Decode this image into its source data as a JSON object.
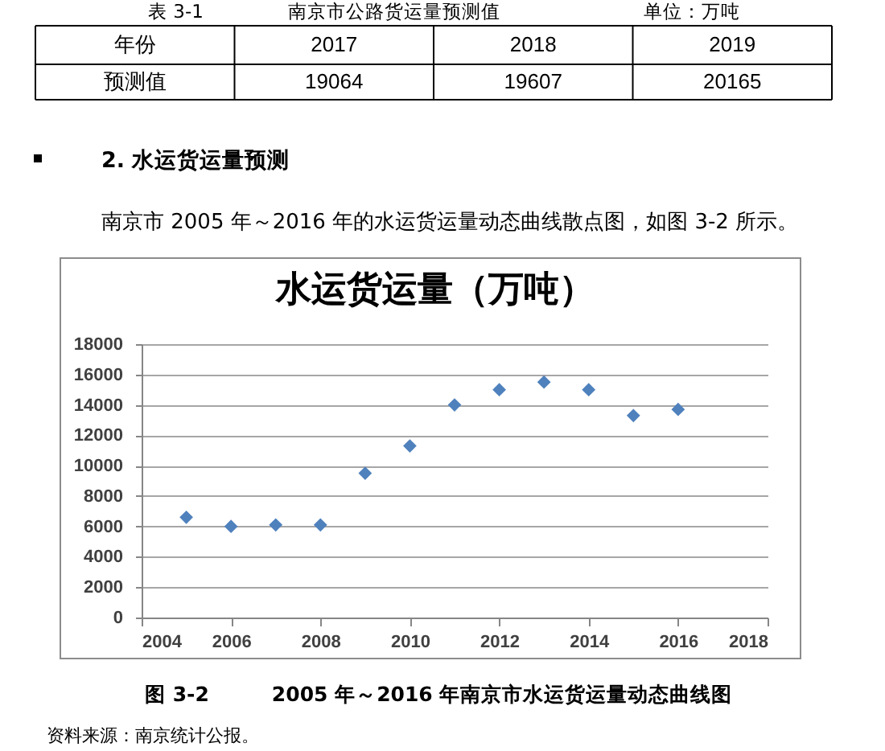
{
  "chart_data": [
    {
      "type": "other",
      "title": "南京市公路货运量预测值",
      "xlabel": "年份",
      "ylabel": "预测值",
      "categories": [
        "2017",
        "2018",
        "2019"
      ],
      "values": [
        19064,
        19607,
        20165
      ],
      "data_labels": true,
      "annotations": [
        "表 3-1",
        "单位：万吨",
        "2. 水运货运量预测",
        "南京市 2005 年～2016 年的水运货运量动态曲线散点图，如图 3-2 所示。"
      ]
    },
    {
      "type": "scatter",
      "title": "水运货运量（万吨）",
      "x": [
        2005,
        2006,
        2007,
        2008,
        2009,
        2010,
        2011,
        2012,
        2013,
        2014,
        2015,
        2016
      ],
      "values": [
        6600,
        6000,
        6100,
        6100,
        9500,
        11300,
        14000,
        15000,
        15500,
        15000,
        13300,
        13700
      ],
      "color": "#4f81bd",
      "marker": "diamond",
      "xlim": [
        2004,
        2018
      ],
      "xticks": [
        2004,
        2006,
        2008,
        2010,
        2012,
        2014,
        2016,
        2018
      ],
      "ylim": [
        0,
        18000
      ],
      "yticks": [
        0,
        2000,
        4000,
        6000,
        8000,
        10000,
        12000,
        14000,
        16000,
        18000
      ],
      "grid": "y",
      "annotations": [
        "图 3-2　　　2005 年～2016 年南京市水运货运量动态曲线图",
        "资料来源：南京统计公报。"
      ]
    }
  ]
}
